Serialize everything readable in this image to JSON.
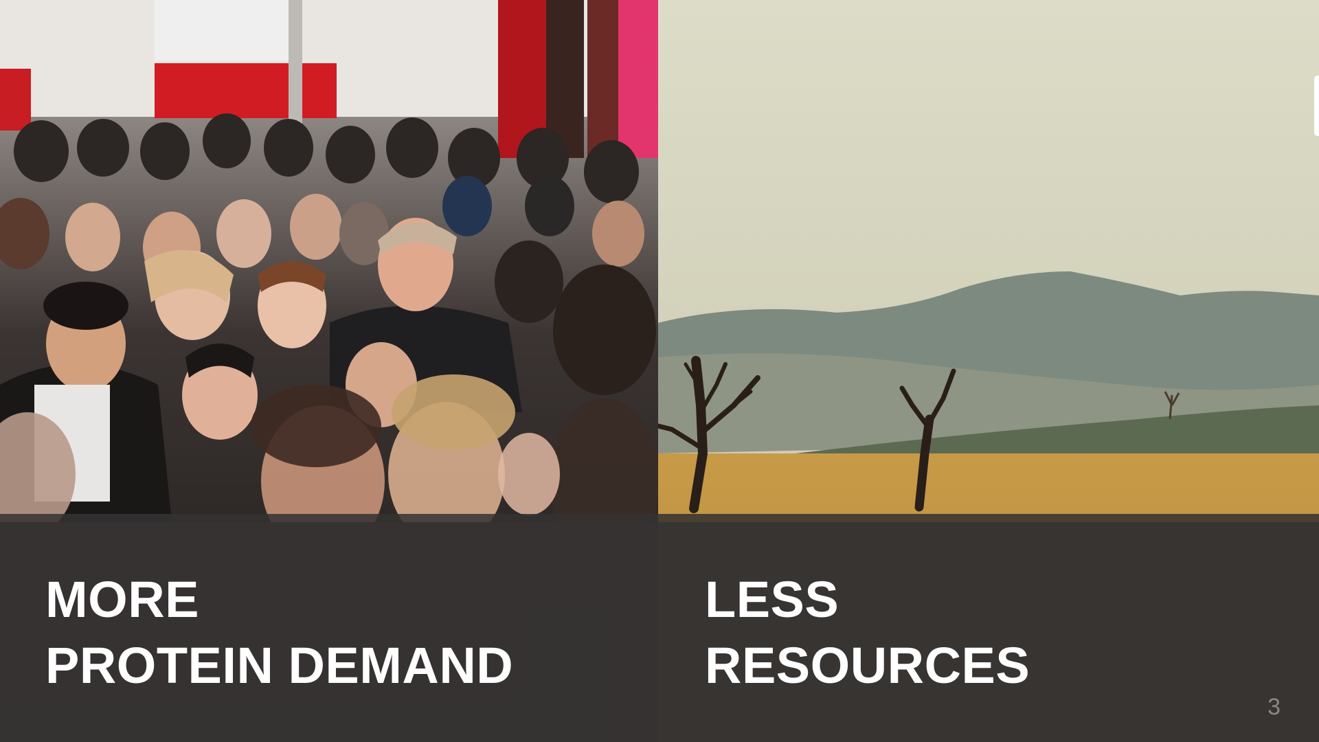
{
  "slide": {
    "left_panel": {
      "image": "crowd-of-people-photo",
      "caption_line1": "MORE",
      "caption_line2": "PROTEIN DEMAND"
    },
    "right_panel": {
      "image": "dry-landscape-dead-trees-photo",
      "caption_line1": "LESS",
      "caption_line2": "RESOURCES"
    },
    "page_number": "3"
  }
}
